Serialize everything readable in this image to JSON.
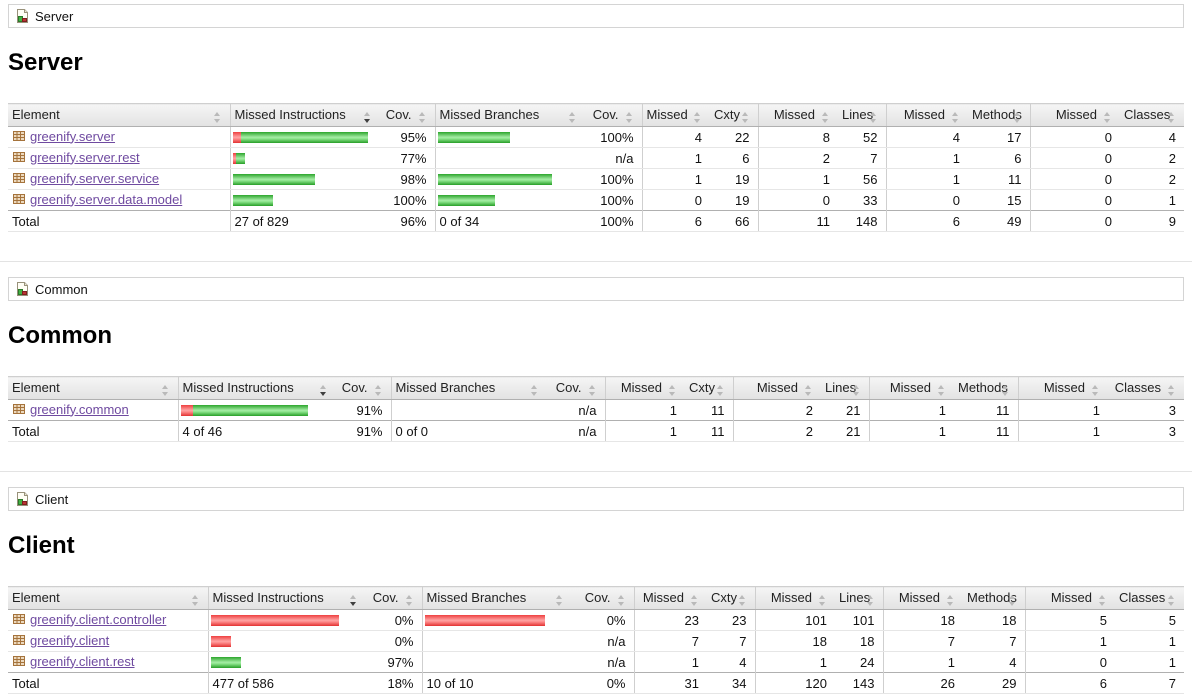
{
  "table": {
    "headers": [
      {
        "label": "Element",
        "align": "left"
      },
      {
        "label": "Missed Instructions",
        "align": "left",
        "sorted": true
      },
      {
        "label": "Cov.",
        "align": "right"
      },
      {
        "label": "Missed Branches",
        "align": "left"
      },
      {
        "label": "Cov.",
        "align": "right"
      },
      {
        "label": "Missed",
        "align": "right"
      },
      {
        "label": "Cxty",
        "align": "right"
      },
      {
        "label": "Missed",
        "align": "right"
      },
      {
        "label": "Lines",
        "align": "right"
      },
      {
        "label": "Missed",
        "align": "right"
      },
      {
        "label": "Methods",
        "align": "right"
      },
      {
        "label": "Missed",
        "align": "right"
      },
      {
        "label": "Classes",
        "align": "right"
      }
    ],
    "total_label": "Total"
  },
  "colors": {
    "covered_green": "#2ca52c",
    "missed_red": "#ef4040",
    "link_purple": "#6f4aa0",
    "header_gray": "#e2e2e2"
  },
  "icons": {
    "report-group-icon": "page-with-green-and-red-blocks",
    "package-icon": "tan-waffle-grid",
    "sort-icon": "up-down-triangles"
  },
  "sections": [
    {
      "breadcrumb": "Server",
      "title": "Server",
      "rows": [
        {
          "element": "greenify.server",
          "instr": {
            "red": 8,
            "green": 127
          },
          "instr_cov": "95%",
          "branch": {
            "red": 0,
            "green": 72
          },
          "branch_cov": "100%",
          "nums": [
            "4",
            "22",
            "8",
            "52",
            "4",
            "17",
            "0",
            "4"
          ]
        },
        {
          "element": "greenify.server.rest",
          "instr": {
            "red": 3,
            "green": 9
          },
          "instr_cov": "77%",
          "branch": null,
          "branch_cov": "n/a",
          "nums": [
            "1",
            "6",
            "2",
            "7",
            "1",
            "6",
            "0",
            "2"
          ]
        },
        {
          "element": "greenify.server.service",
          "instr": {
            "red": 0,
            "green": 82
          },
          "instr_cov": "98%",
          "branch": {
            "red": 0,
            "green": 114
          },
          "branch_cov": "100%",
          "nums": [
            "1",
            "19",
            "1",
            "56",
            "1",
            "11",
            "0",
            "2"
          ]
        },
        {
          "element": "greenify.server.data.model",
          "instr": {
            "red": 0,
            "green": 40
          },
          "instr_cov": "100%",
          "branch": {
            "red": 0,
            "green": 57
          },
          "branch_cov": "100%",
          "nums": [
            "0",
            "19",
            "0",
            "33",
            "0",
            "15",
            "0",
            "1"
          ]
        }
      ],
      "total": {
        "element": "Total",
        "instr_text": "27 of 829",
        "instr_cov": "96%",
        "branch_text": "0 of 34",
        "branch_cov": "100%",
        "nums": [
          "6",
          "66",
          "11",
          "148",
          "6",
          "49",
          "0",
          "9"
        ]
      }
    },
    {
      "breadcrumb": "Common",
      "title": "Common",
      "rows": [
        {
          "element": "greenify.common",
          "instr": {
            "red": 12,
            "green": 115
          },
          "instr_cov": "91%",
          "branch": null,
          "branch_cov": "n/a",
          "nums": [
            "1",
            "11",
            "2",
            "21",
            "1",
            "11",
            "1",
            "3"
          ]
        }
      ],
      "total": {
        "element": "Total",
        "instr_text": "4 of 46",
        "instr_cov": "91%",
        "branch_text": "0 of 0",
        "branch_cov": "n/a",
        "nums": [
          "1",
          "11",
          "2",
          "21",
          "1",
          "11",
          "1",
          "3"
        ]
      }
    },
    {
      "breadcrumb": "Client",
      "title": "Client",
      "rows": [
        {
          "element": "greenify.client.controller",
          "instr": {
            "red": 128,
            "green": 0
          },
          "instr_cov": "0%",
          "branch": {
            "red": 120,
            "green": 0
          },
          "branch_cov": "0%",
          "nums": [
            "23",
            "23",
            "101",
            "101",
            "18",
            "18",
            "5",
            "5"
          ]
        },
        {
          "element": "greenify.client",
          "instr": {
            "red": 20,
            "green": 0
          },
          "instr_cov": "0%",
          "branch": null,
          "branch_cov": "n/a",
          "nums": [
            "7",
            "7",
            "18",
            "18",
            "7",
            "7",
            "1",
            "1"
          ]
        },
        {
          "element": "greenify.client.rest",
          "instr": {
            "red": 0,
            "green": 30
          },
          "instr_cov": "97%",
          "branch": null,
          "branch_cov": "n/a",
          "nums": [
            "1",
            "4",
            "1",
            "24",
            "1",
            "4",
            "0",
            "1"
          ]
        }
      ],
      "total": {
        "element": "Total",
        "instr_text": "477 of 586",
        "instr_cov": "18%",
        "branch_text": "10 of 10",
        "branch_cov": "0%",
        "nums": [
          "31",
          "34",
          "120",
          "143",
          "26",
          "29",
          "6",
          "7"
        ]
      }
    }
  ]
}
